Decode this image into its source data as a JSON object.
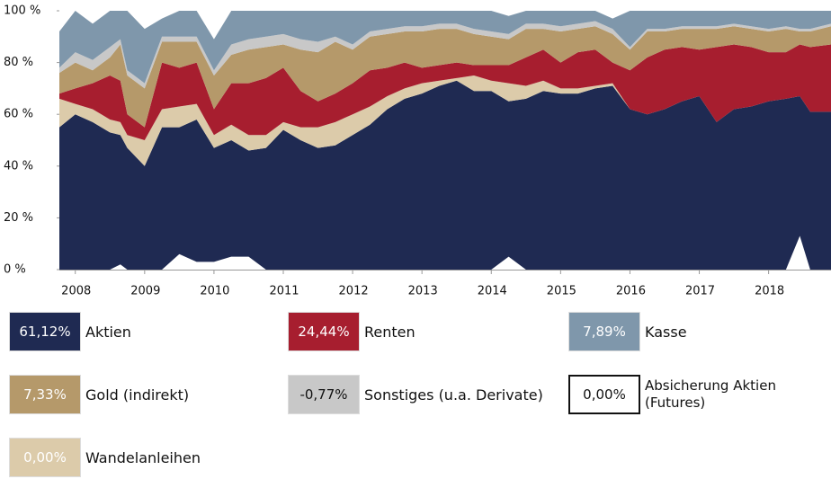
{
  "chart_data": {
    "type": "stacked_area",
    "x": [
      2007.77,
      2008.0,
      2008.25,
      2008.5,
      2008.65,
      2008.75,
      2009.0,
      2009.25,
      2009.5,
      2009.75,
      2010.0,
      2010.25,
      2010.5,
      2010.75,
      2011.0,
      2011.25,
      2011.5,
      2011.75,
      2012.0,
      2012.25,
      2012.5,
      2012.75,
      2013.0,
      2013.25,
      2013.5,
      2013.75,
      2014.0,
      2014.25,
      2014.5,
      2014.75,
      2015.0,
      2015.25,
      2015.5,
      2015.75,
      2016.0,
      2016.25,
      2016.5,
      2016.75,
      2017.0,
      2017.25,
      2017.5,
      2017.75,
      2018.0,
      2018.25,
      2018.45,
      2018.6,
      2018.9
    ],
    "xlim": [
      2007.77,
      2018.9
    ],
    "xticks": [
      2008,
      2009,
      2010,
      2011,
      2012,
      2013,
      2014,
      2015,
      2016,
      2017,
      2018
    ],
    "ylim": [
      0,
      100
    ],
    "yticks": [
      {
        "value": 0,
        "label": "0 %"
      },
      {
        "value": 20,
        "label": "20 %"
      },
      {
        "value": 40,
        "label": "40 %"
      },
      {
        "value": 60,
        "label": "60 %"
      },
      {
        "value": 80,
        "label": "80 %"
      },
      {
        "value": 100,
        "label": "100 %"
      }
    ],
    "series": [
      {
        "name": "Absicherung Aktien (Futures)",
        "color": "#ffffff",
        "current": 0,
        "current_label": "0,00%",
        "values": [
          0,
          0,
          0,
          0,
          2,
          0,
          0,
          0,
          6,
          3,
          3,
          5,
          5,
          0,
          0,
          0,
          0,
          0,
          0,
          0,
          0,
          0,
          0,
          0,
          0,
          0,
          0,
          5,
          0,
          0,
          0,
          0,
          0,
          0,
          0,
          0,
          0,
          0,
          0,
          0,
          0,
          0,
          0,
          0,
          13,
          0,
          0
        ]
      },
      {
        "name": "Aktien",
        "color": "#1f2a52",
        "current": 61.12,
        "current_label": "61,12%",
        "values": [
          55,
          60,
          57,
          53,
          50,
          47,
          40,
          55,
          49,
          55,
          44,
          45,
          41,
          47,
          54,
          50,
          47,
          48,
          52,
          56,
          62,
          66,
          68,
          71,
          73,
          69,
          69,
          60,
          66,
          69,
          68,
          68,
          70,
          71,
          62,
          60,
          62,
          65,
          67,
          57,
          62,
          63,
          65,
          66,
          54,
          61,
          61
        ]
      },
      {
        "name": "Wandelanleihen",
        "color": "#dccbaa",
        "current": 0,
        "current_label": "0,00%",
        "values": [
          11,
          4,
          5,
          5,
          5,
          5,
          10,
          7,
          8,
          6,
          5,
          6,
          6,
          5,
          3,
          5,
          8,
          9,
          8,
          7,
          5,
          4,
          4,
          2,
          1,
          6,
          4,
          7,
          5,
          4,
          2,
          2,
          1,
          1,
          0,
          0,
          0,
          0,
          0,
          0,
          0,
          0,
          0,
          0,
          0,
          0,
          0
        ]
      },
      {
        "name": "Renten",
        "color": "#a71e2f",
        "current": 24.44,
        "current_label": "24,44%",
        "values": [
          2,
          6,
          10,
          17,
          16,
          8,
          5,
          18,
          15,
          16,
          10,
          16,
          20,
          22,
          21,
          14,
          10,
          11,
          12,
          14,
          11,
          10,
          6,
          6,
          6,
          4,
          6,
          7,
          11,
          12,
          10,
          14,
          14,
          8,
          15,
          22,
          23,
          21,
          18,
          29,
          25,
          23,
          19,
          18,
          20,
          25,
          26
        ]
      },
      {
        "name": "Gold (indirekt)",
        "color": "#b5996a",
        "current": 7.33,
        "current_label": "7,33%",
        "values": [
          8,
          10,
          5,
          7,
          14,
          15,
          15,
          8,
          10,
          8,
          13,
          11,
          13,
          12,
          9,
          16,
          19,
          20,
          13,
          13,
          13,
          12,
          14,
          14,
          13,
          12,
          11,
          10,
          11,
          8,
          12,
          9,
          9,
          11,
          8,
          10,
          7,
          7,
          8,
          7,
          7,
          7,
          8,
          9,
          5,
          6,
          7
        ]
      },
      {
        "name": "Sonstiges (u.a. Derivate)",
        "color": "#c8c8c8",
        "current": -0.77,
        "current_label": "-0,77%",
        "values": [
          2,
          4,
          4,
          4,
          2,
          2,
          2,
          2,
          2,
          2,
          2,
          4,
          4,
          4,
          4,
          4,
          4,
          2,
          2,
          2,
          2,
          2,
          2,
          2,
          2,
          2,
          2,
          2,
          2,
          2,
          2,
          2,
          2,
          2,
          1,
          1,
          1,
          1,
          1,
          1,
          1,
          1,
          1,
          1,
          1,
          1,
          1
        ]
      },
      {
        "name": "Kasse",
        "color": "#7f97ab",
        "current": 7.89,
        "current_label": "7,89%",
        "values": [
          14,
          16,
          14,
          14,
          11,
          23,
          21,
          7,
          10,
          10,
          12,
          13,
          11,
          10,
          9,
          11,
          12,
          10,
          13,
          8,
          7,
          6,
          6,
          5,
          5,
          7,
          8,
          7,
          5,
          5,
          6,
          5,
          4,
          4,
          14,
          7,
          7,
          6,
          6,
          6,
          5,
          6,
          7,
          6,
          7,
          7,
          5
        ]
      }
    ]
  }
}
